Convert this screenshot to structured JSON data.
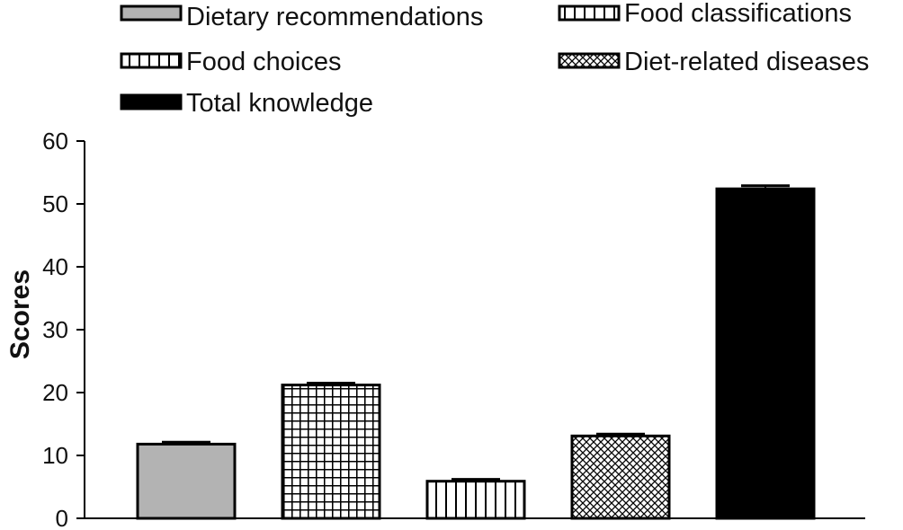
{
  "chart_data": {
    "type": "bar",
    "title": "",
    "xlabel": "",
    "ylabel": "Scores",
    "ylim": [
      0,
      60
    ],
    "yticks": [
      0,
      10,
      20,
      30,
      40,
      50,
      60
    ],
    "legend_position": "top",
    "categories": [
      "Dietary recommendations",
      "Food classifications",
      "Food choices",
      "Diet-related diseases",
      "Total knowledge"
    ],
    "values": [
      11.8,
      21.2,
      5.9,
      13.1,
      52.4
    ],
    "error": [
      0.3,
      0.3,
      0.3,
      0.3,
      0.5
    ],
    "patterns": [
      "solid-gray",
      "grid",
      "vertical-stripes",
      "crosshatch",
      "solid-black"
    ],
    "colors": {
      "gray": "#b3b3b3",
      "black": "#000000",
      "stroke": "#000000"
    }
  }
}
